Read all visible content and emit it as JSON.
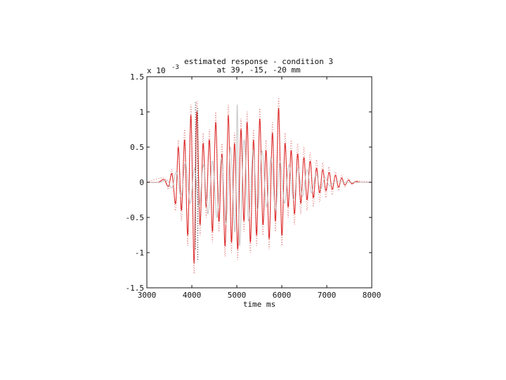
{
  "chart_data": {
    "type": "line",
    "title": "estimated response - condition 3",
    "subtitle": "at 39, -15, -20 mm",
    "xlabel": "time  ms",
    "ylabel": "",
    "y_scale_note": "x 10",
    "y_scale_exponent": "-3",
    "xlim": [
      3000,
      8000
    ],
    "ylim": [
      -1.5,
      1.5
    ],
    "x_ticks": [
      3000,
      4000,
      5000,
      6000,
      7000,
      8000
    ],
    "x_tick_labels": [
      "3000",
      "4000",
      "5000",
      "6000",
      "7000",
      "8000"
    ],
    "y_ticks": [
      -1.5,
      -1,
      -0.5,
      0,
      0.5,
      1,
      1.5
    ],
    "y_tick_labels": [
      "-1.5",
      "-1",
      "-0.5",
      "0",
      "0.5",
      "1",
      "1.5"
    ],
    "grid": false,
    "legend": "none",
    "series": [
      {
        "color": "#dd2020",
        "style": "solid",
        "x": [
          3000,
          3250,
          3380,
          3480,
          3560,
          3640,
          3700,
          3770,
          3840,
          3910,
          3980,
          4050,
          4110,
          4180,
          4250,
          4320,
          4390,
          4460,
          4530,
          4600,
          4670,
          4740,
          4810,
          4880,
          4950,
          5020,
          5090,
          5160,
          5230,
          5300,
          5370,
          5440,
          5510,
          5580,
          5650,
          5720,
          5790,
          5860,
          5930,
          6000,
          6070,
          6140,
          6210,
          6280,
          6350,
          6420,
          6490,
          6560,
          6630,
          6700,
          6770,
          6840,
          6910,
          6980,
          7050,
          7120,
          7190,
          7260,
          7330,
          7400,
          7480,
          7560,
          7650,
          7750,
          8000
        ],
        "y": [
          0,
          0,
          0.04,
          -0.06,
          0.12,
          -0.3,
          0.5,
          -0.4,
          0.6,
          -0.75,
          0.95,
          -1.15,
          1.0,
          -0.6,
          0.55,
          -0.35,
          0.6,
          -0.7,
          0.85,
          -0.55,
          0.4,
          -0.9,
          0.95,
          -0.85,
          0.55,
          -0.95,
          0.75,
          -0.55,
          0.85,
          -0.85,
          0.6,
          -0.75,
          0.9,
          -0.6,
          0.45,
          -0.8,
          0.7,
          -0.55,
          1.05,
          -0.75,
          0.55,
          -0.35,
          0.45,
          -0.45,
          0.4,
          -0.3,
          0.35,
          -0.25,
          0.3,
          -0.22,
          0.2,
          -0.15,
          0.18,
          -0.12,
          0.14,
          -0.1,
          0.1,
          -0.07,
          0.06,
          -0.04,
          0.03,
          -0.02,
          0.01,
          0,
          0
        ]
      },
      {
        "color": "#c8c8c8",
        "style": "solid",
        "x": [
          3000,
          3300,
          3450,
          3560,
          3660,
          3760,
          3860,
          3960,
          4060,
          4160,
          4260,
          4360,
          4460,
          4560,
          4660,
          4760,
          4860,
          4960,
          5010,
          5060,
          5160,
          5260,
          5360,
          5460,
          5560,
          5660,
          5760,
          5860,
          5960,
          6060,
          6160,
          6260,
          6360,
          6460,
          6560,
          6660,
          6760,
          6860,
          6960,
          7060,
          7200,
          7400,
          8000
        ],
        "y": [
          0,
          0,
          0.03,
          -0.08,
          0.15,
          -0.2,
          0.28,
          -0.3,
          0.2,
          -0.35,
          0.25,
          -0.45,
          0.3,
          -0.5,
          0.35,
          -0.6,
          0.5,
          -0.7,
          1.1,
          -0.9,
          0.6,
          -0.55,
          0.45,
          -0.4,
          0.45,
          -0.35,
          0.35,
          -0.4,
          0.3,
          -0.3,
          0.25,
          -0.25,
          0.2,
          -0.2,
          0.18,
          -0.15,
          0.12,
          -0.1,
          0.07,
          -0.05,
          0.02,
          0,
          0
        ]
      },
      {
        "color": "#e07070",
        "style": "dotted",
        "x": [
          3000,
          3380,
          3480,
          3560,
          3640,
          3700,
          3770,
          3840,
          3910,
          3980,
          4050,
          4110,
          4180,
          4250,
          4320,
          4390,
          4460,
          4530,
          4600,
          4670,
          4740,
          4810,
          4880,
          4950,
          5020,
          5090,
          5160,
          5230,
          5300,
          5370,
          5440,
          5510,
          5580,
          5650,
          5720,
          5790,
          5860,
          5930,
          6000,
          6070,
          6140,
          6210,
          6280,
          6350,
          6420,
          6490,
          6560,
          6630,
          6700,
          6770,
          6840,
          6910,
          6980,
          7050,
          7120,
          7190,
          7260,
          7330,
          7400,
          7480,
          7560,
          7650,
          8000
        ],
        "y": [
          0,
          0.06,
          -0.1,
          0.18,
          -0.4,
          0.6,
          -0.55,
          0.75,
          -0.9,
          1.1,
          -1.3,
          1.15,
          -0.75,
          0.7,
          -0.5,
          0.75,
          -0.85,
          1.0,
          -0.7,
          0.55,
          -1.05,
          1.1,
          -1.0,
          0.7,
          -1.1,
          0.9,
          -0.7,
          1.0,
          -1.0,
          0.75,
          -0.9,
          1.05,
          -0.75,
          0.6,
          -0.95,
          0.85,
          -0.7,
          1.2,
          -0.9,
          0.7,
          -0.5,
          0.6,
          -0.6,
          0.55,
          -0.45,
          0.5,
          -0.4,
          0.42,
          -0.35,
          0.32,
          -0.28,
          0.28,
          -0.22,
          0.22,
          -0.18,
          0.15,
          -0.12,
          0.1,
          -0.07,
          0.05,
          -0.03,
          0.02,
          0
        ]
      },
      {
        "color": "#000000",
        "style": "dotted",
        "x": [
          4080,
          4080
        ],
        "y": [
          -0.95,
          1.15
        ]
      },
      {
        "color": "#000000",
        "style": "dotted",
        "x": [
          4130,
          4130
        ],
        "y": [
          -1.1,
          1.05
        ]
      }
    ]
  }
}
